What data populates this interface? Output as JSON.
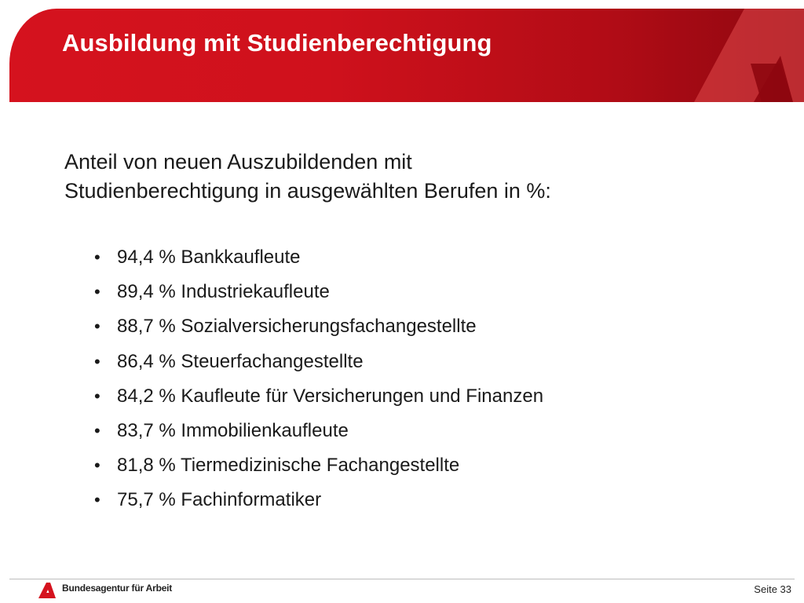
{
  "header": {
    "title": "Ausbildung mit Studienberechtigung",
    "color": "#d5121e"
  },
  "intro": {
    "line1": "Anteil von neuen Auszubildenden mit",
    "line2": "Studienberechtigung in ausgewählten Berufen in %:"
  },
  "items": [
    {
      "bullet": "•",
      "text": "94,4 % Bankkaufleute"
    },
    {
      "bullet": "•",
      "text": "89,4 % Industriekaufleute"
    },
    {
      "bullet": "•",
      "text": "88,7 % Sozialversicherungsfachangestellte"
    },
    {
      "bullet": "•",
      "text": "86,4 % Steuerfachangestellte"
    },
    {
      "bullet": "•",
      "text": "84,2 % Kaufleute für Versicherungen und Finanzen"
    },
    {
      "bullet": "•",
      "text": "83,7 % Immobilienkaufleute"
    },
    {
      "bullet": "•",
      "text": "81,8 % Tiermedizinische Fachangestellte"
    },
    {
      "bullet": "•",
      "text": "75,7 % Fachinformatiker"
    }
  ],
  "footer": {
    "organization": "Bundesagentur für Arbeit",
    "page": "Seite 33",
    "logo_icon": "ba-logo-icon"
  }
}
